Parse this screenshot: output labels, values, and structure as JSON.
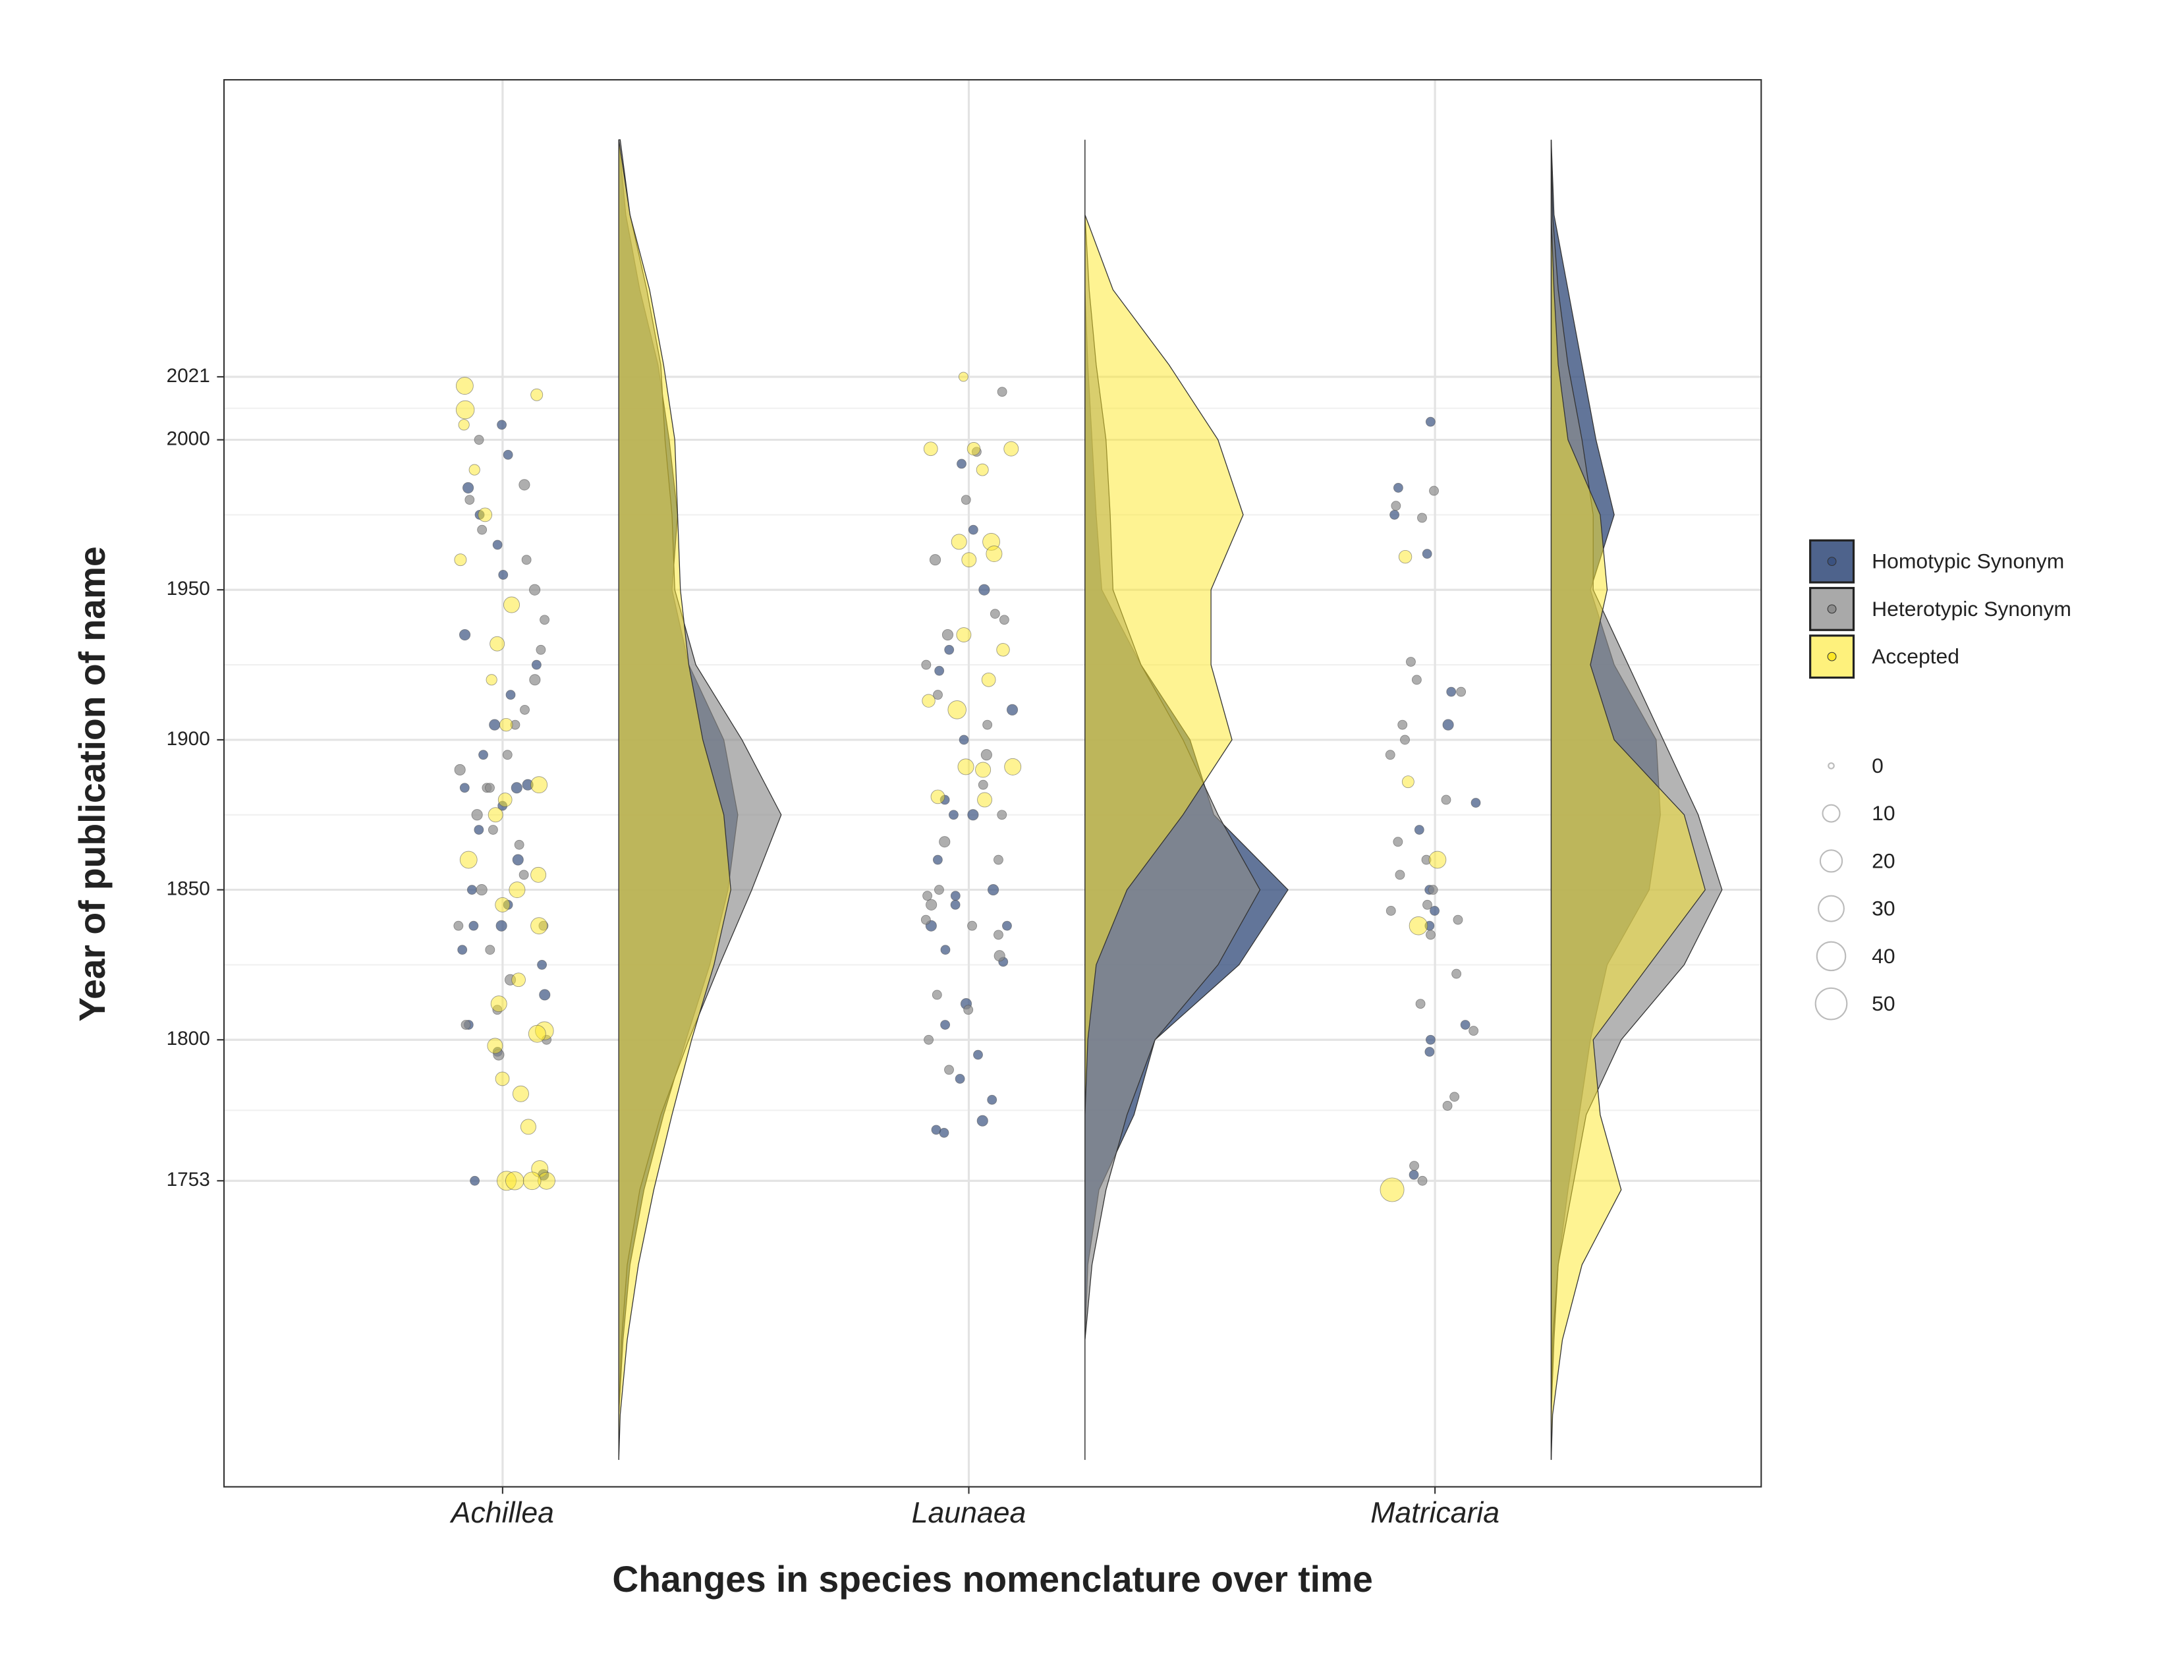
{
  "chart_data": {
    "type": "raincloud",
    "x_label": "Changes in species nomenclature over time",
    "y_label": "Year of publication of name",
    "categories": [
      "Achillea",
      "Launaea",
      "Matricaria"
    ],
    "ylim": [
      1651,
      2120
    ],
    "yticks": [
      1753,
      1800,
      1850,
      1900,
      1950,
      2000,
      2021
    ],
    "grid": true,
    "legend_position": "right",
    "size_legend": [
      0,
      10,
      20,
      30,
      40,
      50
    ],
    "density_years": [
      2100,
      2075,
      2050,
      2025,
      2000,
      1975,
      1950,
      1925,
      1900,
      1875,
      1850,
      1825,
      1800,
      1775,
      1750,
      1725,
      1700,
      1675,
      1660
    ],
    "series": [
      {
        "name": "Homotypic Synonym",
        "color": "#3b5280",
        "densities": [
          [
            0,
            5,
            15,
            28,
            36,
            42,
            38,
            50,
            75,
            85,
            78,
            65,
            48,
            32,
            18,
            8,
            3,
            0,
            0
          ],
          [
            0,
            0,
            0,
            2,
            5,
            8,
            12,
            40,
            75,
            92,
            145,
            110,
            50,
            35,
            10,
            2,
            0,
            0,
            0
          ],
          [
            0,
            2,
            12,
            22,
            32,
            45,
            28,
            45,
            75,
            78,
            70,
            40,
            28,
            20,
            12,
            5,
            2,
            0,
            0
          ]
        ],
        "points": [
          {
            "years": [
              2005,
              1995,
              1984,
              1975,
              1965,
              1955,
              1935,
              1925,
              1915,
              1905,
              1895,
              1885,
              1884,
              1884,
              1878,
              1870,
              1860,
              1850,
              1845,
              1838,
              1838,
              1830,
              1825,
              1815,
              1805,
              1796,
              1755,
              1753
            ],
            "sizes": [
              1,
              1,
              2,
              1,
              1,
              1,
              2,
              1,
              1,
              2,
              1,
              2,
              2,
              1,
              1,
              1,
              2,
              1,
              1,
              2,
              1,
              1,
              1,
              2,
              1,
              1,
              2,
              1
            ]
          },
          {
            "years": [
              1992,
              1970,
              1950,
              1930,
              1923,
              1910,
              1900,
              1880,
              1875,
              1875,
              1860,
              1850,
              1848,
              1845,
              1838,
              1838,
              1830,
              1826,
              1812,
              1805,
              1795,
              1787,
              1780,
              1773,
              1770,
              1769
            ],
            "sizes": [
              1,
              1,
              2,
              1,
              1,
              2,
              1,
              1,
              2,
              1,
              1,
              2,
              1,
              1,
              2,
              1,
              1,
              1,
              2,
              1,
              1,
              1,
              1,
              2,
              1,
              1
            ]
          },
          {
            "years": [
              2006,
              1984,
              1975,
              1962,
              1916,
              1905,
              1879,
              1870,
              1850,
              1843,
              1838,
              1805,
              1800,
              1796,
              1755
            ],
            "sizes": [
              1,
              1,
              1,
              1,
              1,
              2,
              1,
              1,
              1,
              1,
              1,
              1,
              1,
              1,
              1
            ]
          }
        ]
      },
      {
        "name": "Heterotypic Synonym",
        "color": "#8c8c8c",
        "densities": [
          [
            1,
            8,
            20,
            30,
            33,
            38,
            40,
            55,
            88,
            116,
            95,
            72,
            50,
            30,
            15,
            6,
            2,
            0,
            0
          ],
          [
            0,
            0,
            3,
            8,
            15,
            18,
            20,
            40,
            70,
            95,
            125,
            95,
            50,
            30,
            15,
            5,
            0,
            0,
            0
          ],
          [
            0,
            1,
            5,
            12,
            22,
            30,
            30,
            55,
            80,
            105,
            122,
            95,
            50,
            25,
            15,
            5,
            1,
            0,
            0
          ]
        ],
        "points": [
          {
            "years": [
              2000,
              1985,
              1980,
              1970,
              1960,
              1950,
              1940,
              1930,
              1920,
              1910,
              1905,
              1895,
              1890,
              1884,
              1884,
              1875,
              1870,
              1865,
              1855,
              1850,
              1838,
              1838,
              1830,
              1820,
              1810,
              1805,
              1800,
              1795
            ],
            "sizes": [
              1,
              2,
              1,
              1,
              1,
              2,
              1,
              1,
              2,
              1,
              1,
              1,
              2,
              1,
              1,
              2,
              1,
              1,
              1,
              2,
              1,
              1,
              1,
              2,
              1,
              1,
              1,
              2
            ]
          },
          {
            "years": [
              2016,
              1996,
              1980,
              1960,
              1942,
              1940,
              1935,
              1925,
              1915,
              1905,
              1895,
              1885,
              1875,
              1866,
              1860,
              1850,
              1848,
              1845,
              1840,
              1838,
              1835,
              1828,
              1815,
              1810,
              1800,
              1790
            ],
            "sizes": [
              1,
              1,
              1,
              2,
              1,
              1,
              2,
              1,
              1,
              1,
              2,
              1,
              1,
              2,
              1,
              1,
              1,
              2,
              1,
              1,
              1,
              2,
              1,
              1,
              1,
              1
            ]
          },
          {
            "years": [
              1983,
              1978,
              1974,
              1926,
              1920,
              1916,
              1905,
              1900,
              1895,
              1880,
              1866,
              1860,
              1855,
              1850,
              1845,
              1843,
              1840,
              1835,
              1822,
              1812,
              1803,
              1781,
              1778,
              1758,
              1753
            ],
            "sizes": [
              1,
              1,
              1,
              1,
              1,
              1,
              1,
              1,
              1,
              1,
              1,
              1,
              1,
              1,
              1,
              1,
              1,
              1,
              1,
              1,
              1,
              1,
              1,
              1,
              1
            ]
          }
        ]
      },
      {
        "name": "Accepted",
        "color": "#fde725",
        "densities": [
          [
            0,
            8,
            22,
            32,
            40,
            42,
            44,
            50,
            60,
            75,
            80,
            68,
            52,
            38,
            25,
            14,
            6,
            1,
            0
          ],
          [
            0,
            0,
            20,
            60,
            95,
            113,
            90,
            90,
            105,
            70,
            30,
            8,
            2,
            0,
            0,
            0,
            0,
            0,
            0
          ],
          [
            0,
            0,
            2,
            5,
            12,
            35,
            40,
            28,
            45,
            95,
            110,
            70,
            30,
            35,
            50,
            22,
            8,
            1,
            0
          ]
        ],
        "points": [
          {
            "years": [
              2018,
              2015,
              2010,
              2005,
              1990,
              1975,
              1960,
              1945,
              1932,
              1920,
              1905,
              1885,
              1880,
              1875,
              1860,
              1855,
              1850,
              1845,
              1838,
              1820,
              1812,
              1803,
              1802,
              1798,
              1787,
              1782,
              1771,
              1757,
              1753,
              1753,
              1753,
              1753
            ],
            "sizes": [
              10,
              3,
              12,
              2,
              2,
              5,
              3,
              8,
              6,
              2,
              4,
              9,
              5,
              6,
              10,
              7,
              8,
              6,
              9,
              5,
              8,
              12,
              10,
              7,
              5,
              8,
              7,
              9,
              14,
              10,
              12,
              11
            ]
          },
          {
            "years": [
              2021,
              1997,
              1997,
              1997,
              1990,
              1966,
              1966,
              1962,
              1960,
              1935,
              1930,
              1920,
              1913,
              1910,
              1891,
              1891,
              1890,
              1881,
              1880
            ],
            "sizes": [
              1,
              5,
              6,
              4,
              3,
              7,
              10,
              8,
              6,
              6,
              4,
              5,
              4,
              12,
              8,
              9,
              7,
              5,
              6
            ]
          },
          {
            "years": [
              1961,
              1886,
              1860,
              1838,
              1750
            ],
            "sizes": [
              4,
              3,
              10,
              12,
              25
            ]
          }
        ]
      }
    ]
  }
}
